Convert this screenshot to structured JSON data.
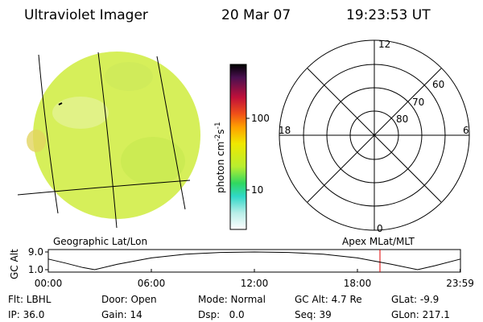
{
  "header": {
    "title": "Ultraviolet Imager",
    "date": "20 Mar 07",
    "time": "19:23:53 UT"
  },
  "colorbar": {
    "label": [
      "photon cm",
      "-2",
      "s",
      "-1"
    ],
    "ticks": [
      "100",
      "10"
    ]
  },
  "polar": {
    "hours": [
      "12",
      "18",
      "6",
      "0"
    ],
    "latitudes": [
      "60",
      "70",
      "80"
    ]
  },
  "captions": {
    "left": "Geographic Lat/Lon",
    "right": "Apex MLat/MLT"
  },
  "altitude": {
    "type": "line",
    "ylabel": "GC Alt",
    "color": "#000000",
    "x": [
      0,
      1,
      2,
      2.7,
      4,
      6,
      8,
      10,
      12,
      14,
      16,
      18,
      20,
      21.5,
      22.5,
      24
    ],
    "values": [
      5.8,
      4.0,
      2.0,
      1.0,
      3.4,
      6.3,
      8.0,
      8.8,
      9.0,
      8.8,
      8.0,
      6.3,
      3.4,
      1.0,
      2.8,
      5.8
    ],
    "xlim": [
      0,
      24
    ],
    "xticks": [
      {
        "value": 0,
        "label": "00:00"
      },
      {
        "value": 6,
        "label": "06:00"
      },
      {
        "value": 12,
        "label": "12:00"
      },
      {
        "value": 18,
        "label": "18:00"
      },
      {
        "value": 23.98,
        "label": "23:59"
      }
    ],
    "ylim": [
      1,
      9
    ],
    "yticks": [
      {
        "value": 1,
        "label": "1.0"
      },
      {
        "value": 9,
        "label": "9.0"
      }
    ]
  },
  "footer": [
    [
      "Flt: LBHL",
      "Door: Open",
      "Mode: Normal",
      "GC Alt: 4.7 Re",
      "GLat: -9.9"
    ],
    [
      "IP: 36.0",
      "Gain: 14",
      "Dsp:   0.0",
      "Seq: 39",
      "GLon: 217.1"
    ]
  ]
}
